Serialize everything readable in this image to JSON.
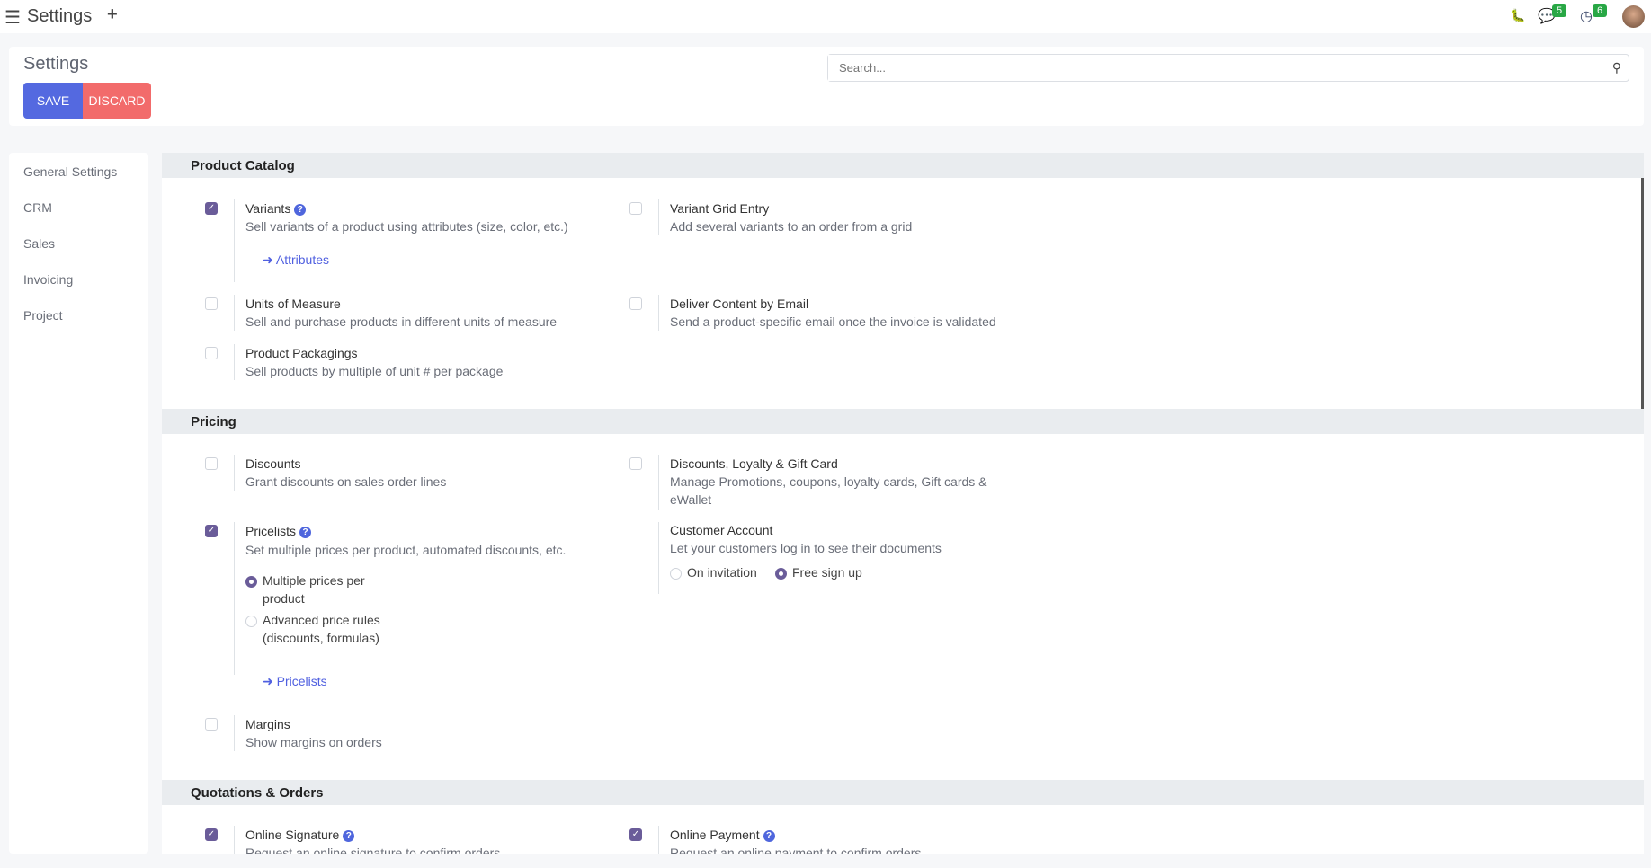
{
  "topbar": {
    "title": "Settings",
    "messages_count": "5",
    "activities_count": "6"
  },
  "control_panel": {
    "title": "Settings",
    "save_label": "SAVE",
    "discard_label": "DISCARD",
    "search_placeholder": "Search..."
  },
  "colors": {
    "save": "#5469e0",
    "discard": "#f26b6b",
    "checked": "#6a5c99",
    "link": "#5060e0"
  },
  "sidebar": {
    "items": [
      {
        "label": "General Settings"
      },
      {
        "label": "CRM"
      },
      {
        "label": "Sales"
      },
      {
        "label": "Invoicing"
      },
      {
        "label": "Project"
      }
    ]
  },
  "sections": {
    "product_catalog": {
      "title": "Product Catalog",
      "variants": {
        "title": "Variants",
        "desc": "Sell variants of a product using attributes (size, color, etc.)",
        "link": "Attributes",
        "checked": true
      },
      "variant_grid": {
        "title": "Variant Grid Entry",
        "desc": "Add several variants to an order from a grid",
        "checked": false
      },
      "uom": {
        "title": "Units of Measure",
        "desc": "Sell and purchase products in different units of measure",
        "checked": false
      },
      "deliver_email": {
        "title": "Deliver Content by Email",
        "desc": "Send a product-specific email once the invoice is validated",
        "checked": false
      },
      "packagings": {
        "title": "Product Packagings",
        "desc": "Sell products by multiple of unit # per package",
        "checked": false
      }
    },
    "pricing": {
      "title": "Pricing",
      "discounts": {
        "title": "Discounts",
        "desc": "Grant discounts on sales order lines",
        "checked": false
      },
      "loyalty": {
        "title": "Discounts, Loyalty & Gift Card",
        "desc": "Manage Promotions, coupons, loyalty cards, Gift cards & eWallet",
        "checked": false
      },
      "pricelists": {
        "title": "Pricelists",
        "desc": "Set multiple prices per product, automated discounts, etc.",
        "option1": "Multiple prices per product",
        "option2": "Advanced price rules (discounts, formulas)",
        "selected": "Multiple prices per product",
        "link": "Pricelists",
        "checked": true
      },
      "customer_account": {
        "title": "Customer Account",
        "desc": "Let your customers log in to see their documents",
        "option1": "On invitation",
        "option2": "Free sign up",
        "selected": "Free sign up"
      },
      "margins": {
        "title": "Margins",
        "desc": "Show margins on orders",
        "checked": false
      }
    },
    "quotations": {
      "title": "Quotations & Orders",
      "online_signature": {
        "title": "Online Signature",
        "desc": "Request an online signature to confirm orders",
        "checked": true
      },
      "online_payment": {
        "title": "Online Payment",
        "desc": "Request an online payment to confirm orders",
        "checked": true
      }
    }
  }
}
